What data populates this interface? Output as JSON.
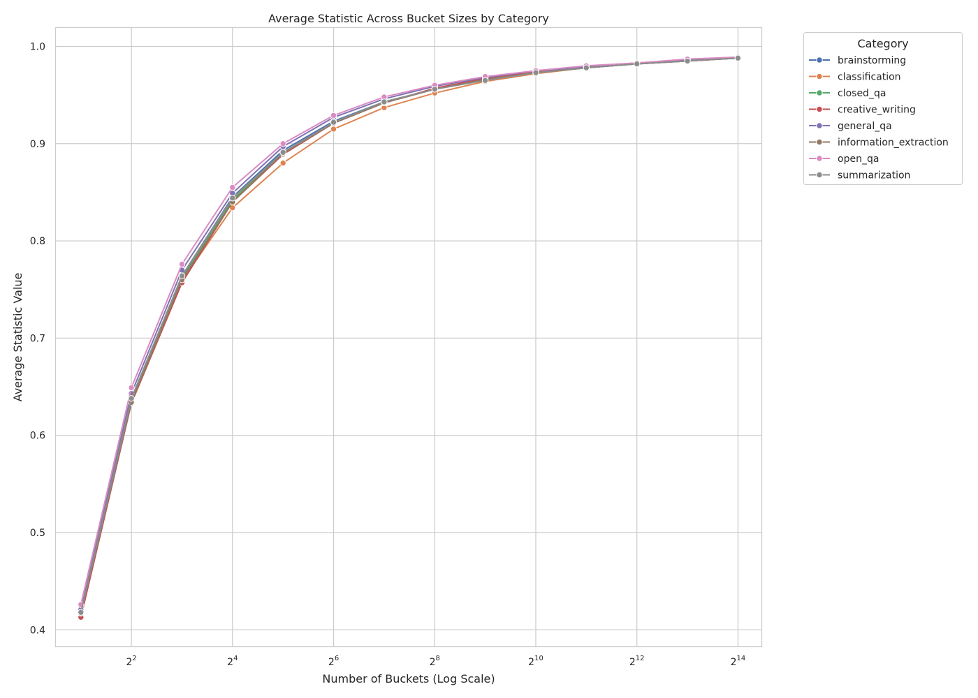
{
  "chart_data": {
    "type": "line",
    "title": "Average Statistic Across Bucket Sizes by Category",
    "xlabel": "Number of Buckets (Log Scale)",
    "ylabel": "Average Statistic Value",
    "x_scale": "log2",
    "x": [
      2,
      4,
      8,
      16,
      32,
      64,
      128,
      256,
      512,
      1024,
      2048,
      4096,
      8192,
      16384
    ],
    "xlim": [
      1.42,
      22600
    ],
    "ylim": [
      0.383,
      1.019
    ],
    "x_ticks": [
      {
        "value": 4,
        "base": "2",
        "exp": "2"
      },
      {
        "value": 16,
        "base": "2",
        "exp": "4"
      },
      {
        "value": 64,
        "base": "2",
        "exp": "6"
      },
      {
        "value": 256,
        "base": "2",
        "exp": "8"
      },
      {
        "value": 1024,
        "base": "2",
        "exp": "10"
      },
      {
        "value": 4096,
        "base": "2",
        "exp": "12"
      },
      {
        "value": 16384,
        "base": "2",
        "exp": "14"
      }
    ],
    "y_ticks": [
      {
        "value": 0.4,
        "label": "0.4"
      },
      {
        "value": 0.5,
        "label": "0.5"
      },
      {
        "value": 0.6,
        "label": "0.6"
      },
      {
        "value": 0.7,
        "label": "0.7"
      },
      {
        "value": 0.8,
        "label": "0.8"
      },
      {
        "value": 0.9,
        "label": "0.9"
      },
      {
        "value": 1.0,
        "label": "1.0"
      }
    ],
    "grid": true,
    "legend_title": "Category",
    "legend_position": "outside-top-right",
    "series": [
      {
        "name": "brainstorming",
        "color": "#4c72b0",
        "values": [
          0.418,
          0.636,
          0.764,
          0.845,
          0.893,
          0.923,
          0.943,
          0.956,
          0.966,
          0.973,
          0.978,
          0.982,
          0.985,
          0.988
        ]
      },
      {
        "name": "classification",
        "color": "#dd8452",
        "values": [
          0.416,
          0.634,
          0.759,
          0.834,
          0.88,
          0.915,
          0.937,
          0.952,
          0.964,
          0.972,
          0.978,
          0.982,
          0.985,
          0.988
        ]
      },
      {
        "name": "closed_qa",
        "color": "#55a868",
        "values": [
          0.417,
          0.636,
          0.762,
          0.842,
          0.89,
          0.921,
          0.942,
          0.956,
          0.966,
          0.973,
          0.978,
          0.982,
          0.985,
          0.988
        ]
      },
      {
        "name": "creative_writing",
        "color": "#c44e52",
        "values": [
          0.413,
          0.633,
          0.757,
          0.84,
          0.889,
          0.921,
          0.942,
          0.957,
          0.967,
          0.974,
          0.979,
          0.983,
          0.986,
          0.989
        ]
      },
      {
        "name": "general_qa",
        "color": "#8172b3",
        "values": [
          0.421,
          0.643,
          0.77,
          0.849,
          0.897,
          0.927,
          0.946,
          0.959,
          0.968,
          0.975,
          0.979,
          0.983,
          0.986,
          0.988
        ]
      },
      {
        "name": "information_extraction",
        "color": "#937860",
        "values": [
          0.417,
          0.634,
          0.76,
          0.84,
          0.89,
          0.921,
          0.942,
          0.956,
          0.966,
          0.973,
          0.978,
          0.982,
          0.985,
          0.988
        ]
      },
      {
        "name": "open_qa",
        "color": "#da8bc3",
        "values": [
          0.426,
          0.649,
          0.776,
          0.855,
          0.9,
          0.929,
          0.948,
          0.96,
          0.969,
          0.975,
          0.98,
          0.983,
          0.987,
          0.989
        ]
      },
      {
        "name": "summarization",
        "color": "#8c8c8c",
        "values": [
          0.418,
          0.638,
          0.764,
          0.844,
          0.891,
          0.922,
          0.943,
          0.956,
          0.965,
          0.973,
          0.978,
          0.982,
          0.985,
          0.988
        ]
      }
    ]
  }
}
